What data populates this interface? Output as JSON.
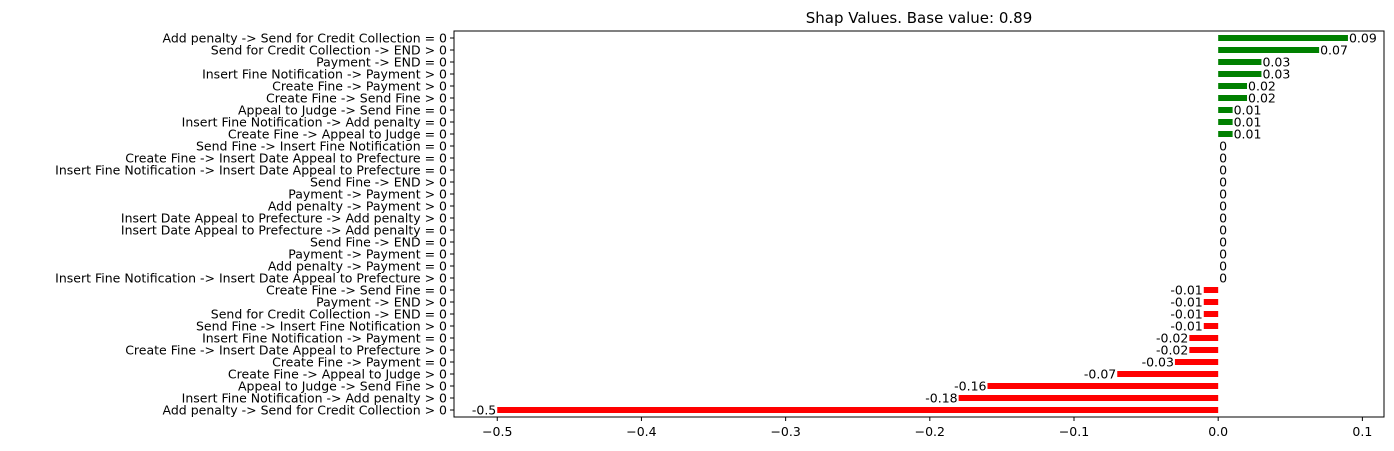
{
  "chart_data": {
    "type": "bar",
    "orientation": "horizontal",
    "title": "Shap Values. Base value: 0.89",
    "xlabel": "",
    "ylabel": "",
    "xlim": [
      -0.53,
      0.115
    ],
    "xticks": [
      -0.5,
      -0.4,
      -0.3,
      -0.2,
      -0.1,
      0.0,
      0.1
    ],
    "xtick_labels": [
      "−0.5",
      "−0.4",
      "−0.3",
      "−0.2",
      "−0.1",
      "0.0",
      "0.1"
    ],
    "grid": false,
    "legend": "none",
    "positive_color": "#008000",
    "negative_color": "#ff0000",
    "categories": [
      "Add penalty -> Send for Credit Collection = 0",
      "Send for Credit Collection -> END > 0",
      "Payment -> END = 0",
      "Insert Fine Notification -> Payment > 0",
      "Create Fine -> Payment > 0",
      "Create Fine -> Send Fine > 0",
      "Appeal to Judge -> Send Fine = 0",
      "Insert Fine Notification -> Add penalty = 0",
      "Create Fine -> Appeal to Judge = 0",
      "Send Fine -> Insert Fine Notification = 0",
      "Create Fine -> Insert Date Appeal to Prefecture = 0",
      "Insert Fine Notification -> Insert Date Appeal to Prefecture = 0",
      "Send Fine -> END > 0",
      "Payment -> Payment > 0",
      "Add penalty -> Payment > 0",
      "Insert Date Appeal to Prefecture -> Add penalty > 0",
      "Insert Date Appeal to Prefecture -> Add penalty = 0",
      "Send Fine -> END = 0",
      "Payment -> Payment = 0",
      "Add penalty -> Payment = 0",
      "Insert Fine Notification -> Insert Date Appeal to Prefecture > 0",
      "Create Fine -> Send Fine = 0",
      "Payment -> END > 0",
      "Send for Credit Collection -> END = 0",
      "Send Fine -> Insert Fine Notification > 0",
      "Insert Fine Notification -> Payment = 0",
      "Create Fine -> Insert Date Appeal to Prefecture > 0",
      "Create Fine -> Payment = 0",
      "Create Fine -> Appeal to Judge > 0",
      "Appeal to Judge -> Send Fine > 0",
      "Insert Fine Notification -> Add penalty > 0",
      "Add penalty -> Send for Credit Collection > 0"
    ],
    "values": [
      0.09,
      0.07,
      0.03,
      0.03,
      0.02,
      0.02,
      0.01,
      0.01,
      0.01,
      0,
      0,
      0,
      0,
      0,
      0,
      0,
      0,
      0,
      0,
      0,
      0,
      -0.01,
      -0.01,
      -0.01,
      -0.01,
      -0.02,
      -0.02,
      -0.03,
      -0.07,
      -0.16,
      -0.18,
      -0.5
    ],
    "value_labels": [
      "0.09",
      "0.07",
      "0.03",
      "0.03",
      "0.02",
      "0.02",
      "0.01",
      "0.01",
      "0.01",
      "0",
      "0",
      "0",
      "0",
      "0",
      "0",
      "0",
      "0",
      "0",
      "0",
      "0",
      "0",
      "-0.01",
      "-0.01",
      "-0.01",
      "-0.01",
      "-0.02",
      "-0.02",
      "-0.03",
      "-0.07",
      "-0.16",
      "-0.18",
      "-0.5"
    ]
  }
}
